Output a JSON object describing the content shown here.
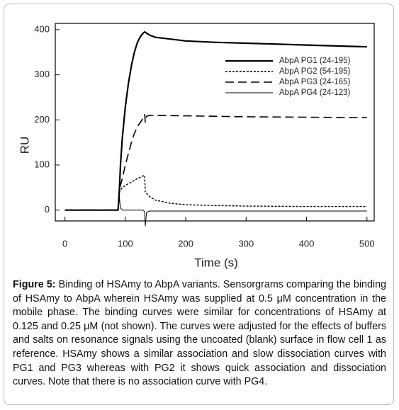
{
  "chart_data": {
    "type": "line",
    "xlabel": "Time (s)",
    "ylabel": "RU",
    "xlim": [
      -16,
      512
    ],
    "ylim": [
      -24,
      414
    ],
    "xticks": [
      0,
      100,
      200,
      300,
      400,
      500
    ],
    "yticks": [
      0,
      100,
      200,
      300,
      400
    ],
    "legend": "upper right",
    "series": [
      {
        "name": "AbpA PG1 (24-195)",
        "color": "#000000",
        "dash": "solid",
        "width": 2.2,
        "x": [
          0,
          88,
          90,
          92,
          95,
          100,
          105,
          110,
          115,
          120,
          125,
          130,
          132,
          140,
          150,
          200,
          250,
          300,
          400,
          500
        ],
        "values": [
          0,
          0,
          40,
          100,
          160,
          230,
          280,
          320,
          350,
          372,
          385,
          393,
          395,
          388,
          383,
          375,
          372,
          370,
          366,
          362
        ]
      },
      {
        "name": "AbpA PG2 (54-195)",
        "color": "#000000",
        "dash": "dotted",
        "width": 1.4,
        "x": [
          0,
          88,
          90,
          95,
          100,
          110,
          120,
          130,
          132,
          133,
          140,
          150,
          175,
          200,
          250,
          300,
          400,
          500
        ],
        "values": [
          0,
          0,
          40,
          50,
          55,
          62,
          70,
          76,
          77,
          40,
          30,
          22,
          15,
          12,
          10,
          9,
          8,
          8
        ]
      },
      {
        "name": "AbpA PG3 (24-165)",
        "color": "#000000",
        "dash": "dashed",
        "width": 1.6,
        "x": [
          0,
          88,
          90,
          95,
          100,
          105,
          110,
          115,
          120,
          125,
          130,
          132,
          133,
          135,
          140,
          200,
          300,
          400,
          500
        ],
        "values": [
          0,
          0,
          45,
          70,
          100,
          125,
          150,
          170,
          185,
          195,
          205,
          212,
          195,
          208,
          210,
          209,
          207,
          206,
          205
        ]
      },
      {
        "name": "AbpA PG4 (24-123)",
        "color": "#000000",
        "dash": "solid",
        "width": 1,
        "x": [
          0,
          88,
          90,
          92,
          95,
          130,
          132,
          133,
          135,
          140,
          500
        ],
        "values": [
          0,
          0,
          30,
          5,
          0,
          0,
          -5,
          -35,
          -5,
          -2,
          -2
        ]
      }
    ]
  },
  "caption": {
    "label": "Figure 5:",
    "text": "Binding of HSAmy to AbpA variants. Sensorgrams comparing the binding of HSAmy to AbpA wherein HSAmy was supplied at 0.5 μM concentration in the mobile phase. The binding curves were similar for concentrations of HSAmy at 0.125 and 0.25 μM (not shown). The curves were adjusted for the effects of buffers and salts on resonance signals using the uncoated (blank) surface in flow cell 1 as reference. HSAmy shows a similar association and slow dissociation curves with PG1 and PG3 whereas with PG2 it shows quick association and dissociation curves. Note that there is no association curve with PG4."
  }
}
